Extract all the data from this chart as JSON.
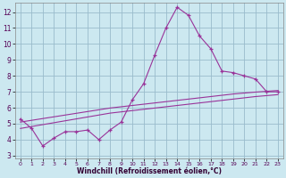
{
  "x": [
    0,
    1,
    2,
    3,
    4,
    5,
    6,
    7,
    8,
    9,
    10,
    11,
    12,
    13,
    14,
    15,
    16,
    17,
    18,
    19,
    20,
    21,
    22,
    23
  ],
  "y_main": [
    5.3,
    4.7,
    3.6,
    4.1,
    4.5,
    4.5,
    4.6,
    4.0,
    4.6,
    5.1,
    6.5,
    7.5,
    9.3,
    11.0,
    12.3,
    11.8,
    10.5,
    9.7,
    8.3,
    8.2,
    8.0,
    7.8,
    7.0,
    7.0
  ],
  "y_line1": [
    4.7,
    4.82,
    4.94,
    5.06,
    5.18,
    5.3,
    5.42,
    5.54,
    5.66,
    5.74,
    5.82,
    5.9,
    5.98,
    6.06,
    6.14,
    6.22,
    6.3,
    6.38,
    6.46,
    6.54,
    6.62,
    6.7,
    6.76,
    6.82
  ],
  "y_line2": [
    5.1,
    5.21,
    5.32,
    5.43,
    5.54,
    5.65,
    5.76,
    5.87,
    5.98,
    6.06,
    6.14,
    6.22,
    6.3,
    6.38,
    6.46,
    6.54,
    6.62,
    6.7,
    6.78,
    6.86,
    6.92,
    6.98,
    7.03,
    7.08
  ],
  "line_color": "#993399",
  "bg_color": "#cce8f0",
  "grid_color": "#99bbcc",
  "xlabel": "Windchill (Refroidissement éolien,°C)",
  "xlim": [
    -0.5,
    23.5
  ],
  "ylim": [
    2.8,
    12.6
  ],
  "yticks": [
    3,
    4,
    5,
    6,
    7,
    8,
    9,
    10,
    11,
    12
  ],
  "xticks": [
    0,
    1,
    2,
    3,
    4,
    5,
    6,
    7,
    8,
    9,
    10,
    11,
    12,
    13,
    14,
    15,
    16,
    17,
    18,
    19,
    20,
    21,
    22,
    23
  ]
}
